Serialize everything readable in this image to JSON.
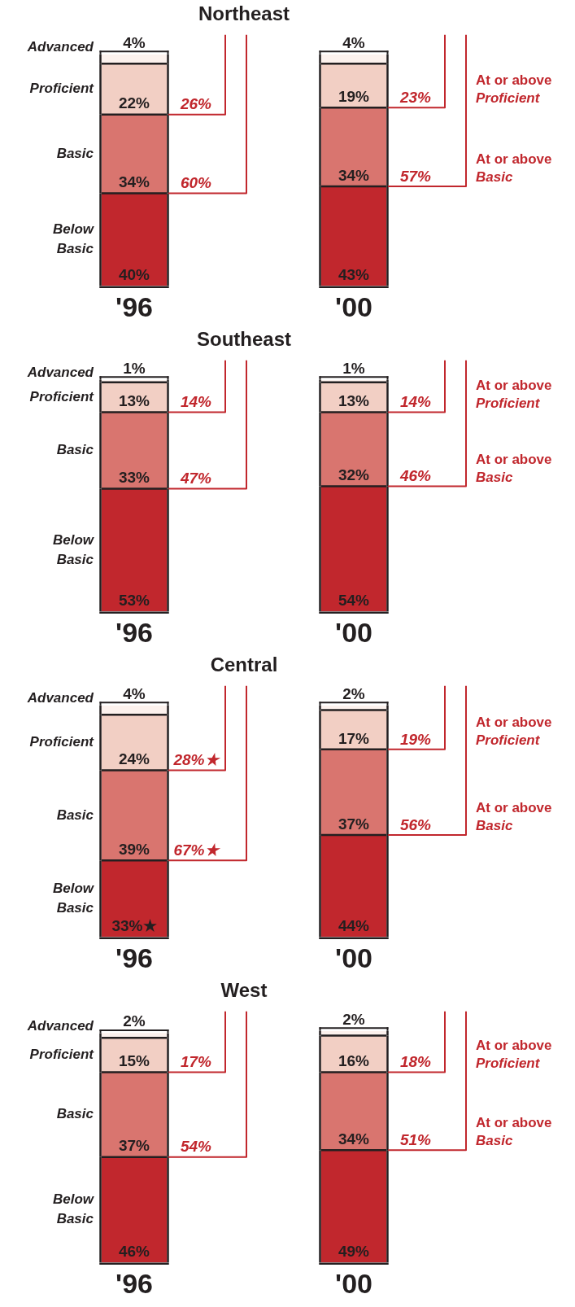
{
  "chart_data": [
    {
      "type": "bar",
      "title": "Northeast",
      "categories": [
        "'96",
        "'00"
      ],
      "stacked": true,
      "legend": "left",
      "series": [
        {
          "name": "Below Basic",
          "color": "#c1272d",
          "values": [
            40,
            43
          ],
          "value_labels": [
            "40%",
            "43%"
          ]
        },
        {
          "name": "Basic",
          "color": "#d9756f",
          "values": [
            34,
            34
          ],
          "value_labels": [
            "34%",
            "34%"
          ]
        },
        {
          "name": "Proficient",
          "color": "#f2cfc4",
          "values": [
            22,
            19
          ],
          "value_labels": [
            "22%",
            "19%"
          ]
        },
        {
          "name": "Advanced",
          "color": "#fcf1ed",
          "values": [
            4,
            4
          ],
          "value_labels": [
            "4%",
            "4%"
          ]
        }
      ],
      "annotations": [
        "26%",
        "60%",
        "23%",
        "57%",
        "At or above Proficient",
        "At or above Basic"
      ]
    },
    {
      "type": "bar",
      "title": "Southeast",
      "categories": [
        "'96",
        "'00"
      ],
      "stacked": true,
      "legend": "left",
      "series": [
        {
          "name": "Below Basic",
          "color": "#c1272d",
          "values": [
            53,
            54
          ],
          "value_labels": [
            "53%",
            "54%"
          ]
        },
        {
          "name": "Basic",
          "color": "#d9756f",
          "values": [
            33,
            32
          ],
          "value_labels": [
            "33%",
            "32%"
          ]
        },
        {
          "name": "Proficient",
          "color": "#f2cfc4",
          "values": [
            13,
            13
          ],
          "value_labels": [
            "13%",
            "13%"
          ]
        },
        {
          "name": "Advanced",
          "color": "#fcf1ed",
          "values": [
            1,
            1
          ],
          "value_labels": [
            "1%",
            "1%"
          ]
        }
      ],
      "annotations": [
        "14%",
        "47%",
        "14%",
        "46%",
        "At or above Proficient",
        "At or above Basic"
      ]
    },
    {
      "type": "bar",
      "title": "Central",
      "categories": [
        "'96",
        "'00"
      ],
      "stacked": true,
      "legend": "left",
      "series": [
        {
          "name": "Below Basic",
          "color": "#c1272d",
          "values": [
            33,
            44
          ],
          "value_labels": [
            "33%★",
            "44%"
          ]
        },
        {
          "name": "Basic",
          "color": "#d9756f",
          "values": [
            39,
            37
          ],
          "value_labels": [
            "39%",
            "37%"
          ]
        },
        {
          "name": "Proficient",
          "color": "#f2cfc4",
          "values": [
            24,
            17
          ],
          "value_labels": [
            "24%",
            "17%"
          ]
        },
        {
          "name": "Advanced",
          "color": "#fcf1ed",
          "values": [
            4,
            2
          ],
          "value_labels": [
            "4%",
            "2%"
          ]
        }
      ],
      "annotations": [
        "28%★",
        "67%★",
        "19%",
        "56%",
        "At or above Proficient",
        "At or above Basic"
      ]
    },
    {
      "type": "bar",
      "title": "West",
      "categories": [
        "'96",
        "'00"
      ],
      "stacked": true,
      "legend": "left",
      "series": [
        {
          "name": "Below Basic",
          "color": "#c1272d",
          "values": [
            46,
            49
          ],
          "value_labels": [
            "46%",
            "49%"
          ]
        },
        {
          "name": "Basic",
          "color": "#d9756f",
          "values": [
            37,
            34
          ],
          "value_labels": [
            "37%",
            "34%"
          ]
        },
        {
          "name": "Proficient",
          "color": "#f2cfc4",
          "values": [
            15,
            16
          ],
          "value_labels": [
            "15%",
            "16%"
          ]
        },
        {
          "name": "Advanced",
          "color": "#fcf1ed",
          "values": [
            2,
            2
          ],
          "value_labels": [
            "2%",
            "2%"
          ]
        }
      ],
      "annotations": [
        "17%",
        "54%",
        "18%",
        "51%",
        "At or above Proficient",
        "At or above Basic"
      ]
    }
  ]
}
